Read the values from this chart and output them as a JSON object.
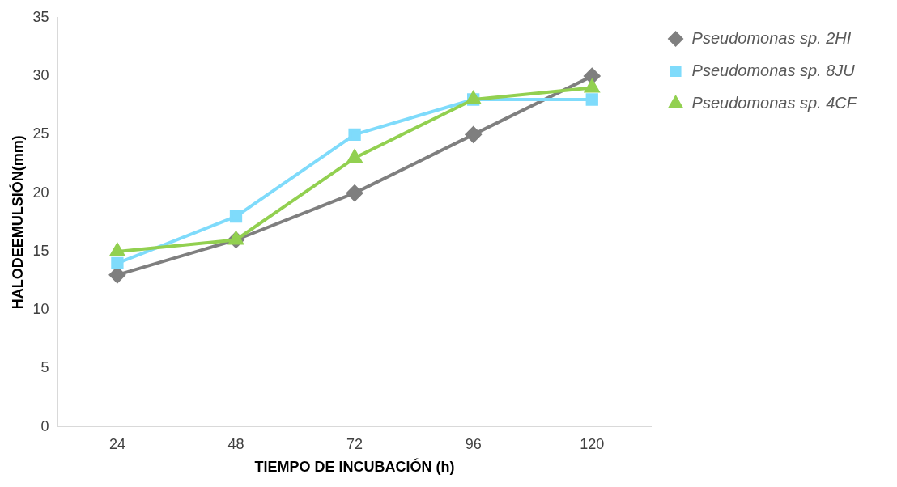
{
  "chart_data": {
    "type": "line",
    "xlabel": "TIEMPO DE INCUBACIÓN (h)",
    "ylabel": "HALODEEMULSIÓN(mm)",
    "categories": [
      "24",
      "48",
      "72",
      "96",
      "120"
    ],
    "series": [
      {
        "name": "Pseudomonas sp. 2HI",
        "color": "#7f7f7f",
        "marker": "diamond",
        "values": [
          13,
          16,
          20,
          25,
          30
        ]
      },
      {
        "name": "Pseudomonas sp. 8JU",
        "color": "#7fdbfb",
        "marker": "square",
        "values": [
          14,
          18,
          25,
          28,
          28
        ]
      },
      {
        "name": "Pseudomonas sp. 4CF",
        "color": "#92d050",
        "marker": "triangle",
        "values": [
          15,
          16,
          23,
          28,
          29
        ]
      }
    ],
    "ylim": [
      0,
      35
    ],
    "yticks": [
      0,
      5,
      10,
      15,
      20,
      25,
      30,
      35
    ],
    "grid": false,
    "legend": "top right",
    "line_style": "solid"
  }
}
